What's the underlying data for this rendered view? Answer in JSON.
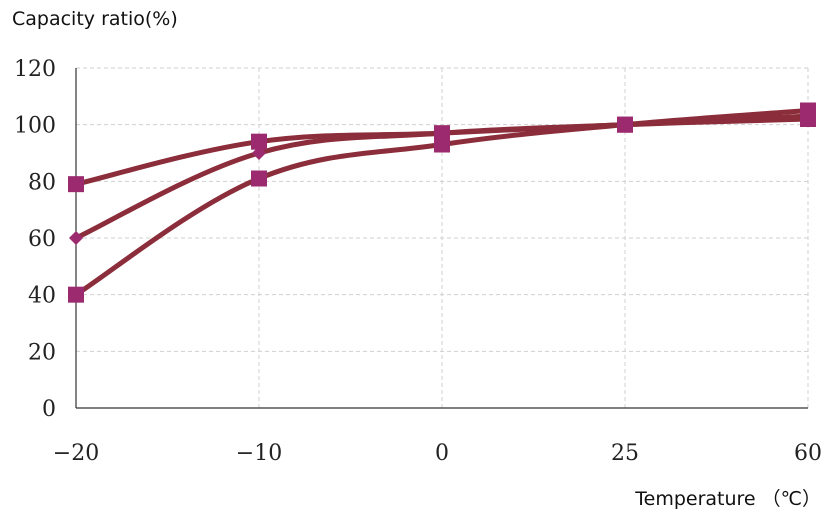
{
  "chart_data": {
    "type": "line",
    "title": "",
    "ylabel": "Capacity ratio(%)",
    "xlabel": "Temperature （℃）",
    "categories": [
      "-20",
      "-10",
      "0",
      "25",
      "60"
    ],
    "x_tick_labels": [
      "−20",
      "−10",
      "0",
      "25",
      "60"
    ],
    "ylim": [
      0,
      120
    ],
    "y_ticks": [
      0,
      20,
      40,
      60,
      80,
      100,
      120
    ],
    "y_tick_labels": [
      "0",
      "20",
      "40",
      "60",
      "80",
      "100",
      "120"
    ],
    "grid": true,
    "legend": "none",
    "line_color": "#8b2d3a",
    "marker_color": "#9c2a6e",
    "series": [
      {
        "values": [
          79,
          94,
          97,
          100,
          102
        ],
        "marker": "square"
      },
      {
        "values": [
          60,
          90,
          97,
          100,
          103
        ],
        "marker": "diamond"
      },
      {
        "values": [
          40,
          81,
          93,
          100,
          105
        ],
        "marker": "square"
      }
    ]
  }
}
